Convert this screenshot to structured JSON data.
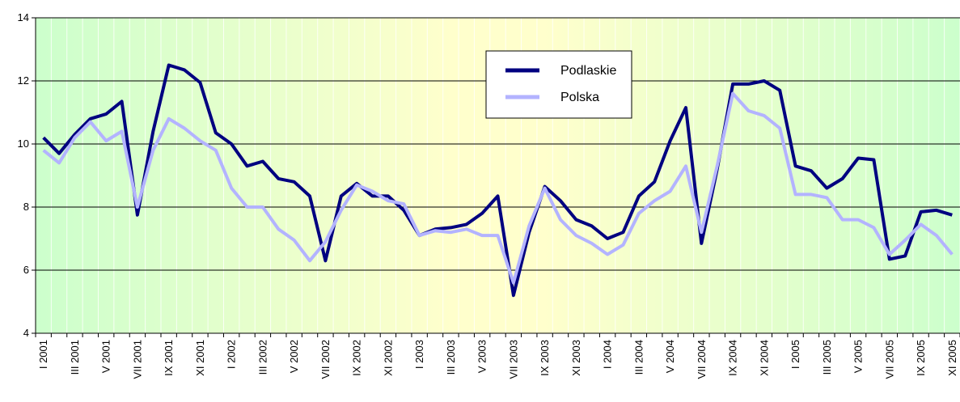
{
  "chart_data": {
    "type": "line",
    "categories": [
      "I 2001",
      null,
      "III 2001",
      null,
      "V 2001",
      null,
      "VII 2001",
      null,
      "IX 2001",
      null,
      "XI 2001",
      null,
      "I 2002",
      null,
      "III 2002",
      null,
      "V 2002",
      null,
      "VII 2002",
      null,
      "IX 2002",
      null,
      "XI 2002",
      null,
      "I 2003",
      null,
      "III 2003",
      null,
      "V 2003",
      null,
      "VII 2003",
      null,
      "IX 2003",
      null,
      "XI 2003",
      null,
      "I 2004",
      null,
      "III 2004",
      null,
      "V 2004",
      null,
      "VII 2004",
      null,
      "IX 2004",
      null,
      "XI 2004",
      null,
      "I 2005",
      null,
      "III 2005",
      null,
      "V 2005",
      null,
      "VII 2005",
      null,
      "IX 2005",
      null,
      "XI 2005"
    ],
    "series": [
      {
        "name": "Podlaskie",
        "color": "#000080",
        "values": [
          10.2,
          9.7,
          10.3,
          10.8,
          10.95,
          11.35,
          7.75,
          10.4,
          12.5,
          12.35,
          11.95,
          10.35,
          10.0,
          9.3,
          9.45,
          8.9,
          8.8,
          8.35,
          6.3,
          8.35,
          8.75,
          8.35,
          8.35,
          7.9,
          7.1,
          7.3,
          7.35,
          7.45,
          7.8,
          8.35,
          5.2,
          7.2,
          8.65,
          8.2,
          7.6,
          7.4,
          7.0,
          7.2,
          8.35,
          8.8,
          10.1,
          11.15,
          6.85,
          9.2,
          11.9,
          11.9,
          12.0,
          11.7,
          9.3,
          9.15,
          8.6,
          8.9,
          9.55,
          9.5,
          6.35,
          6.45,
          7.85,
          7.9,
          7.75
        ]
      },
      {
        "name": "Polska",
        "color": "#b3b3ff",
        "values": [
          9.8,
          9.4,
          10.2,
          10.7,
          10.1,
          10.4,
          8.0,
          9.8,
          10.8,
          10.5,
          10.1,
          9.8,
          8.6,
          8.0,
          8.0,
          7.3,
          6.95,
          6.3,
          6.9,
          7.9,
          8.7,
          8.5,
          8.2,
          8.1,
          7.1,
          7.25,
          7.2,
          7.3,
          7.1,
          7.1,
          5.6,
          7.4,
          8.6,
          7.6,
          7.1,
          6.85,
          6.5,
          6.8,
          7.8,
          8.2,
          8.5,
          9.3,
          7.2,
          9.3,
          11.6,
          11.05,
          10.9,
          10.5,
          8.4,
          8.4,
          8.3,
          7.6,
          7.6,
          7.35,
          6.5,
          6.95,
          7.45,
          7.1,
          6.5
        ]
      }
    ],
    "ylim": [
      4,
      14
    ],
    "yticks": [
      4,
      6,
      8,
      10,
      12,
      14
    ],
    "grid": true,
    "legend": "top-center"
  }
}
